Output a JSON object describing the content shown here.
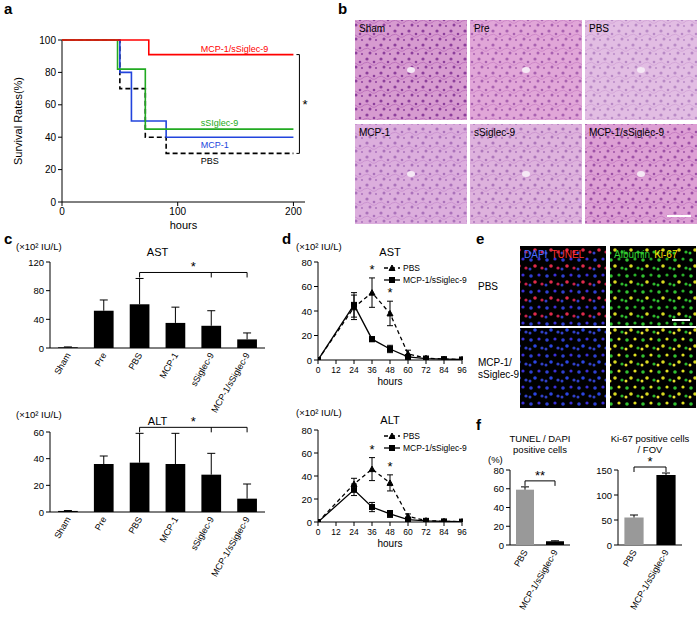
{
  "panel_labels": [
    "a",
    "b",
    "c",
    "d",
    "e",
    "f"
  ],
  "panel_b": {
    "labels": [
      "Sham",
      "Pre",
      "PBS",
      "MCP-1",
      "sSiglec-9",
      "MCP-1/sSiglec-9"
    ]
  },
  "panel_e": {
    "columns": [
      [
        {
          "text": "DAPI",
          "color": "#4a6cff"
        },
        {
          "text": "TUNEL",
          "color": "#ff3030"
        }
      ],
      [
        {
          "text": "Albumin",
          "color": "#30d030"
        },
        {
          "text": "Ki-67",
          "color": "#ffe600"
        }
      ]
    ],
    "rows": [
      [
        "PBS"
      ],
      [
        "MCP-1/",
        "sSiglec-9"
      ]
    ]
  },
  "chart_data": [
    {
      "type": "step",
      "y_label": "Survival Rates(%)",
      "x_label": "hours",
      "x": [
        0,
        48,
        50,
        60,
        72,
        75,
        90,
        200
      ],
      "xlim": [
        0,
        210
      ],
      "xticks": [
        0,
        100,
        200
      ],
      "ylim": [
        0,
        100
      ],
      "yticks": [
        0,
        20,
        40,
        60,
        80,
        100
      ],
      "series": [
        {
          "name": "MCP-1/sSiglec-9",
          "color": "#ff0000",
          "line_style": "solid",
          "values": [
            100,
            100,
            100,
            100,
            100,
            91,
            91,
            91
          ]
        },
        {
          "name": "sSIglec-9",
          "color": "#22aa22",
          "line_style": "solid",
          "values": [
            100,
            82,
            82,
            82,
            45,
            45,
            45,
            45
          ]
        },
        {
          "name": "MCP-1",
          "color": "#2244dd",
          "line_style": "solid",
          "values": [
            100,
            100,
            80,
            50,
            50,
            50,
            40,
            40
          ]
        },
        {
          "name": "PBS",
          "color": "#000000",
          "line_style": "dashed",
          "values": [
            100,
            100,
            70,
            70,
            40,
            40,
            30,
            30
          ]
        }
      ],
      "annotations": [
        "*"
      ]
    },
    {
      "type": "bar",
      "title": "AST",
      "y_label": "(×10² IU/L)",
      "categories": [
        "Sham",
        "Pre",
        "PBS",
        "MCP-1",
        "sSiglec-9",
        "MCP-1/sSiglec-9"
      ],
      "values": [
        1,
        52,
        61,
        35,
        31,
        12
      ],
      "errors": [
        0.5,
        15,
        36,
        22,
        21,
        9
      ],
      "color": "#000000",
      "ylim": [
        0,
        120
      ],
      "yticks": [
        0,
        40,
        80,
        120
      ],
      "annotations": [
        "*"
      ]
    },
    {
      "type": "bar",
      "title": "ALT",
      "y_label": "(×10² IU/L)",
      "categories": [
        "Sham",
        "Pre",
        "PBS",
        "MCP-1",
        "sSiglec-9",
        "MCP-1/sSiglec-9"
      ],
      "values": [
        0.8,
        36,
        37,
        36,
        28,
        10
      ],
      "errors": [
        0.3,
        6,
        22,
        23,
        16,
        11
      ],
      "color": "#000000",
      "ylim": [
        0,
        60
      ],
      "yticks": [
        0,
        20,
        40,
        60
      ],
      "annotations": [
        "*"
      ]
    },
    {
      "type": "line",
      "title": "AST",
      "y_label": "(×10² IU/L)",
      "x_label": "hours",
      "x": [
        0,
        24,
        36,
        48,
        60,
        72,
        84,
        96
      ],
      "xlim": [
        0,
        96
      ],
      "xticks": [
        0,
        12,
        24,
        36,
        48,
        60,
        72,
        84,
        96
      ],
      "ylim": [
        0,
        80
      ],
      "yticks": [
        0,
        20,
        40,
        60,
        80
      ],
      "legend": "upper right",
      "series": [
        {
          "name": "PBS",
          "color": "#000000",
          "line_style": "dashed",
          "marker": "triangle",
          "values": [
            0,
            43,
            55,
            38,
            5,
            1.5,
            0.8,
            0.4
          ],
          "errors": [
            0,
            10,
            12,
            10,
            3,
            0.5,
            0.3,
            0.2
          ]
        },
        {
          "name": "MCP-1/sSiglec-9",
          "color": "#000000",
          "line_style": "solid",
          "marker": "square",
          "values": [
            0,
            45,
            17,
            9,
            2.5,
            1.2,
            0.7,
            0.4
          ],
          "errors": [
            0,
            10,
            2,
            3,
            1,
            0.4,
            0.2,
            0.1
          ]
        }
      ],
      "annotations": [
        {
          "text": "*",
          "x": 36
        },
        {
          "text": "*",
          "x": 48
        }
      ]
    },
    {
      "type": "line",
      "title": "ALT",
      "y_label": "(×10² IU/L)",
      "x_label": "hours",
      "x": [
        0,
        24,
        36,
        48,
        60,
        72,
        84,
        96
      ],
      "xlim": [
        0,
        96
      ],
      "xticks": [
        0,
        12,
        24,
        36,
        48,
        60,
        72,
        84,
        96
      ],
      "ylim": [
        0,
        80
      ],
      "yticks": [
        0,
        20,
        40,
        60,
        80
      ],
      "legend": "upper right",
      "series": [
        {
          "name": "PBS",
          "color": "#000000",
          "line_style": "dashed",
          "marker": "triangle",
          "values": [
            0,
            33,
            46,
            34,
            5,
            1.2,
            0.6,
            0.3
          ],
          "errors": [
            0,
            5,
            10,
            7,
            2,
            0.4,
            0.2,
            0.1
          ]
        },
        {
          "name": "MCP-1/sSiglec-9",
          "color": "#000000",
          "line_style": "solid",
          "marker": "square",
          "values": [
            0,
            28,
            13,
            7,
            2,
            1,
            0.5,
            0.3
          ],
          "errors": [
            0,
            5,
            4,
            3,
            1,
            0.3,
            0.2,
            0.1
          ]
        }
      ],
      "annotations": [
        {
          "text": "*",
          "x": 36
        },
        {
          "text": "*",
          "x": 48
        }
      ]
    },
    {
      "type": "bar",
      "title": "TUNEL / DAPI positive cells",
      "y_label": "(%)",
      "categories": [
        "PBS",
        "MCP-1/sSiglec-9"
      ],
      "values": [
        59,
        4
      ],
      "errors": [
        3,
        0.5
      ],
      "colors": [
        "#999999",
        "#000000"
      ],
      "ylim": [
        0,
        80
      ],
      "yticks": [
        0,
        20,
        40,
        60,
        80
      ],
      "annotations": [
        "**"
      ]
    },
    {
      "type": "bar",
      "title": "Ki-67 positive cells / FOV",
      "categories": [
        "PBS",
        "MCP-1/sSiglec-9"
      ],
      "values": [
        55,
        140
      ],
      "errors": [
        5,
        4
      ],
      "colors": [
        "#999999",
        "#000000"
      ],
      "ylim": [
        0,
        150
      ],
      "yticks": [
        0,
        50,
        100,
        150
      ],
      "annotations": [
        "*"
      ]
    }
  ]
}
